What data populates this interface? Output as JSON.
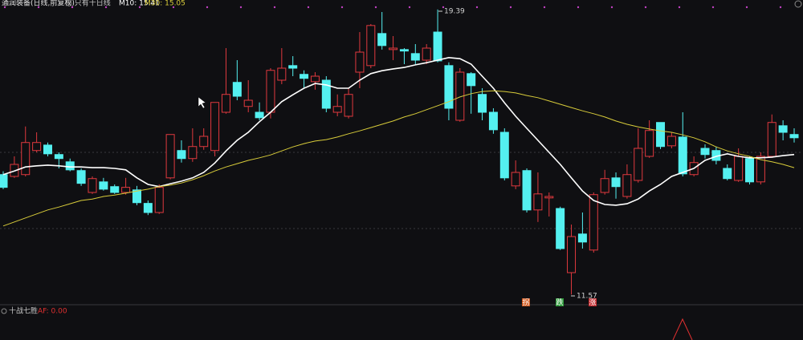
{
  "chart_data": {
    "type": "candlestick",
    "title": "通润装备(日线,前复权)",
    "indicator": "◎ 只有十日线",
    "ylim": [
      11.29,
      19.65
    ],
    "up_color": "#e0393e",
    "down_color": "#54f0f0",
    "high_label": "19.39",
    "low_label": "11.57",
    "signals": [
      "拐",
      "跌",
      "涨"
    ],
    "ohlc": [
      [
        14.86,
        14.95,
        14.46,
        14.51
      ],
      [
        14.81,
        15.36,
        14.77,
        15.14
      ],
      [
        14.86,
        16.18,
        14.81,
        15.74
      ],
      [
        15.52,
        16.02,
        15.47,
        15.74
      ],
      [
        15.67,
        15.74,
        15.36,
        15.43
      ],
      [
        15.41,
        15.47,
        15.03,
        15.3
      ],
      [
        15.21,
        15.3,
        14.95,
        14.99
      ],
      [
        14.97,
        15.03,
        14.55,
        14.62
      ],
      [
        14.37,
        14.81,
        14.33,
        14.75
      ],
      [
        14.66,
        14.77,
        14.42,
        14.46
      ],
      [
        14.53,
        14.59,
        14.33,
        14.37
      ],
      [
        14.37,
        14.77,
        14.31,
        14.51
      ],
      [
        14.44,
        14.55,
        14.02,
        14.09
      ],
      [
        14.07,
        14.15,
        13.75,
        13.82
      ],
      [
        13.82,
        14.59,
        13.78,
        14.51
      ],
      [
        14.77,
        15.96,
        14.73,
        15.96
      ],
      [
        15.52,
        15.8,
        15.19,
        15.3
      ],
      [
        15.3,
        16.13,
        15.21,
        15.63
      ],
      [
        15.63,
        16.13,
        15.54,
        15.91
      ],
      [
        15.52,
        16.84,
        15.36,
        16.84
      ],
      [
        16.57,
        18.33,
        16.53,
        17.06
      ],
      [
        17.39,
        18.0,
        16.9,
        17.01
      ],
      [
        16.73,
        17.45,
        16.57,
        16.9
      ],
      [
        16.57,
        16.84,
        16.35,
        16.42
      ],
      [
        16.57,
        17.78,
        16.4,
        17.72
      ],
      [
        17.45,
        18.33,
        17.34,
        17.78
      ],
      [
        17.85,
        18.11,
        17.56,
        17.78
      ],
      [
        17.61,
        17.72,
        17.23,
        17.5
      ],
      [
        17.41,
        17.67,
        17.19,
        17.56
      ],
      [
        17.45,
        17.56,
        16.57,
        16.68
      ],
      [
        16.57,
        17.06,
        16.46,
        16.73
      ],
      [
        16.46,
        17.23,
        16.4,
        17.06
      ],
      [
        17.67,
        18.77,
        17.23,
        18.22
      ],
      [
        17.85,
        18.99,
        17.78,
        18.95
      ],
      [
        18.73,
        19.32,
        18.29,
        18.4
      ],
      [
        18.29,
        18.66,
        18.0,
        18.33
      ],
      [
        18.29,
        18.33,
        17.89,
        18.25
      ],
      [
        18.18,
        18.44,
        17.89,
        18.0
      ],
      [
        18.0,
        18.44,
        17.89,
        18.33
      ],
      [
        18.77,
        19.39,
        17.94,
        17.98
      ],
      [
        17.85,
        17.94,
        16.35,
        16.68
      ],
      [
        16.35,
        17.78,
        16.31,
        17.67
      ],
      [
        17.63,
        17.67,
        16.53,
        17.3
      ],
      [
        17.06,
        17.23,
        16.35,
        16.57
      ],
      [
        16.57,
        16.68,
        15.98,
        16.09
      ],
      [
        16.02,
        16.13,
        14.7,
        14.77
      ],
      [
        14.55,
        15.25,
        14.46,
        14.92
      ],
      [
        14.97,
        15.03,
        13.82,
        13.89
      ],
      [
        13.89,
        14.92,
        13.56,
        14.33
      ],
      [
        14.22,
        14.37,
        13.71,
        14.26
      ],
      [
        13.93,
        13.98,
        12.79,
        12.83
      ],
      [
        12.17,
        13.49,
        11.57,
        13.16
      ],
      [
        13.23,
        13.82,
        12.83,
        13.01
      ],
      [
        12.79,
        14.37,
        12.72,
        14.31
      ],
      [
        14.37,
        14.99,
        14.31,
        14.75
      ],
      [
        14.77,
        14.92,
        14.2,
        14.53
      ],
      [
        14.26,
        15.14,
        14.2,
        14.86
      ],
      [
        14.7,
        16.13,
        14.64,
        15.58
      ],
      [
        15.36,
        16.35,
        15.32,
        16.07
      ],
      [
        16.29,
        16.29,
        15.56,
        15.63
      ],
      [
        15.65,
        16.02,
        15.58,
        15.91
      ],
      [
        15.89,
        16.57,
        14.81,
        14.88
      ],
      [
        14.86,
        15.36,
        14.81,
        15.19
      ],
      [
        15.58,
        15.69,
        15.3,
        15.41
      ],
      [
        15.52,
        15.63,
        15.14,
        15.25
      ],
      [
        15.03,
        15.14,
        14.7,
        14.75
      ],
      [
        14.7,
        15.58,
        14.66,
        15.36
      ],
      [
        15.3,
        15.36,
        14.59,
        14.66
      ],
      [
        14.66,
        15.47,
        14.59,
        15.36
      ],
      [
        15.36,
        16.51,
        15.32,
        16.29
      ],
      [
        16.2,
        16.35,
        15.8,
        16.02
      ],
      [
        15.96,
        16.13,
        15.74,
        15.87
      ]
    ],
    "series": [
      {
        "name": "M10",
        "label": "M10: 15.41",
        "color": "#ffffff",
        "values": [
          14.86,
          14.96,
          15.07,
          15.1,
          15.12,
          15.1,
          15.07,
          15.07,
          15.05,
          15.05,
          15.03,
          14.99,
          14.77,
          14.59,
          14.53,
          14.61,
          14.68,
          14.77,
          14.92,
          15.18,
          15.51,
          15.8,
          16.02,
          16.31,
          16.57,
          16.86,
          17.05,
          17.23,
          17.36,
          17.32,
          17.23,
          17.23,
          17.45,
          17.63,
          17.71,
          17.76,
          17.8,
          17.87,
          17.93,
          18.0,
          18.07,
          18.04,
          17.89,
          17.56,
          17.23,
          16.83,
          16.46,
          16.13,
          15.8,
          15.47,
          15.14,
          14.77,
          14.41,
          14.15,
          14.04,
          14.02,
          14.06,
          14.19,
          14.41,
          14.59,
          14.81,
          14.92,
          15.03,
          15.25,
          15.36,
          15.43,
          15.36,
          15.32,
          15.32,
          15.34,
          15.38,
          15.41
        ]
      },
      {
        "name": "M30",
        "label": "M30: 15.05",
        "color": "#d8cc3a",
        "values": [
          13.45,
          13.56,
          13.67,
          13.78,
          13.89,
          13.97,
          14.06,
          14.15,
          14.19,
          14.26,
          14.3,
          14.35,
          14.41,
          14.46,
          14.53,
          14.57,
          14.63,
          14.72,
          14.83,
          14.96,
          15.07,
          15.16,
          15.25,
          15.32,
          15.4,
          15.51,
          15.62,
          15.71,
          15.78,
          15.82,
          15.89,
          15.98,
          16.06,
          16.15,
          16.24,
          16.33,
          16.44,
          16.53,
          16.64,
          16.75,
          16.86,
          16.99,
          17.08,
          17.14,
          17.16,
          17.14,
          17.1,
          17.03,
          16.97,
          16.88,
          16.79,
          16.7,
          16.61,
          16.53,
          16.44,
          16.33,
          16.24,
          16.17,
          16.11,
          16.06,
          16.02,
          15.95,
          15.87,
          15.76,
          15.62,
          15.51,
          15.43,
          15.36,
          15.27,
          15.21,
          15.14,
          15.05
        ]
      }
    ],
    "panel": {
      "title": "十战七胜",
      "value_label": "AF: 0.00"
    }
  }
}
